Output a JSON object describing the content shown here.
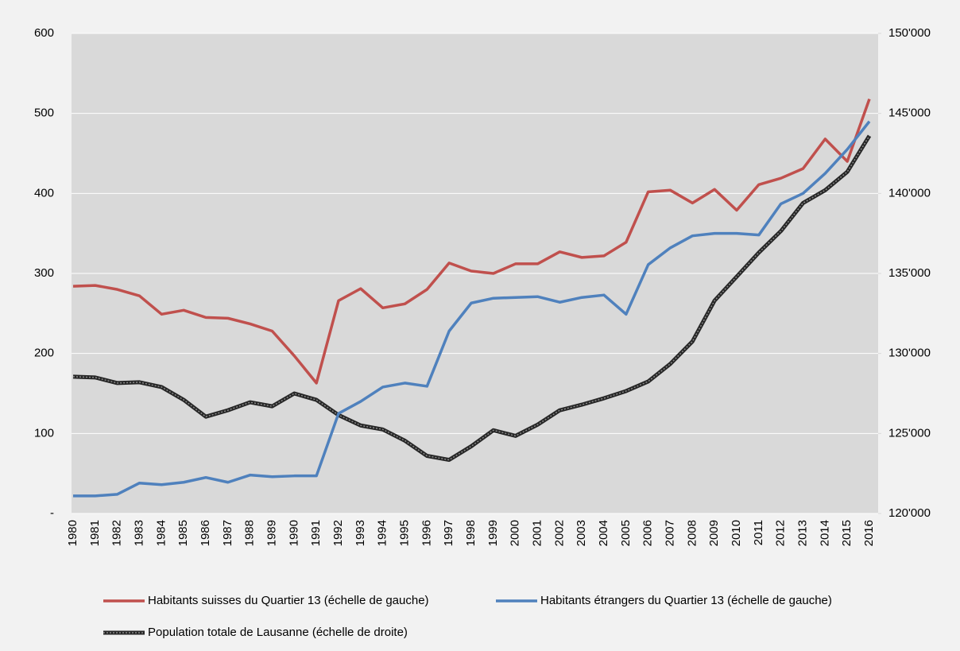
{
  "chart_data": {
    "type": "line",
    "categories": [
      "1980",
      "1981",
      "1982",
      "1983",
      "1984",
      "1985",
      "1986",
      "1987",
      "1988",
      "1989",
      "1990",
      "1991",
      "1992",
      "1993",
      "1994",
      "1995",
      "1996",
      "1997",
      "1998",
      "1999",
      "2000",
      "2001",
      "2002",
      "2003",
      "2004",
      "2005",
      "2006",
      "2007",
      "2008",
      "2009",
      "2010",
      "2011",
      "2012",
      "2013",
      "2014",
      "2015",
      "2016"
    ],
    "series": [
      {
        "name": "Habitants suisses du Quartier 13 (échelle de gauche)",
        "color": "#c0504d",
        "values": [
          284,
          285,
          280,
          272,
          249,
          254,
          245,
          244,
          237,
          228,
          197,
          163,
          266,
          281,
          257,
          262,
          280,
          313,
          303,
          300,
          312,
          312,
          327,
          320,
          322,
          339,
          402,
          404,
          388,
          405,
          379,
          411,
          419,
          431,
          468,
          440,
          518
        ]
      },
      {
        "name": "Habitants étrangers du Quartier 13 (échelle de gauche)",
        "color": "#4f81bd",
        "values": [
          22,
          22,
          24,
          38,
          36,
          39,
          45,
          39,
          48,
          46,
          47,
          47,
          125,
          140,
          158,
          163,
          159,
          228,
          263,
          269,
          270,
          271,
          264,
          270,
          273,
          249,
          311,
          332,
          347,
          350,
          350,
          348,
          387,
          400,
          425,
          455,
          490
        ]
      },
      {
        "name": "Population totale de Lausanne (échelle de droite)",
        "color": "#262626",
        "axis": "y2",
        "values": [
          128550,
          128500,
          128150,
          128200,
          127900,
          127100,
          126050,
          126450,
          126950,
          126700,
          127500,
          127100,
          126150,
          125500,
          125250,
          124550,
          123600,
          123350,
          124200,
          125200,
          124850,
          125550,
          126450,
          126800,
          127200,
          127650,
          128250,
          129350,
          130750,
          133300,
          134800,
          136300,
          137650,
          139400,
          140200,
          141350,
          143600
        ]
      }
    ],
    "ylim": [
      0,
      600
    ],
    "yticks": [
      {
        "value": 0,
        "label": "-"
      },
      100,
      200,
      300,
      400,
      500,
      600
    ],
    "y2lim": [
      120000,
      150000
    ],
    "y2ticks": [
      {
        "value": 120000,
        "label": "120'000"
      },
      {
        "value": 125000,
        "label": "125'000"
      },
      {
        "value": 130000,
        "label": "130'000"
      },
      {
        "value": 135000,
        "label": "135'000"
      },
      {
        "value": 140000,
        "label": "140'000"
      },
      {
        "value": 145000,
        "label": "145'000"
      },
      {
        "value": 150000,
        "label": "150'000"
      }
    ],
    "grid": true,
    "legend": "bottom"
  }
}
